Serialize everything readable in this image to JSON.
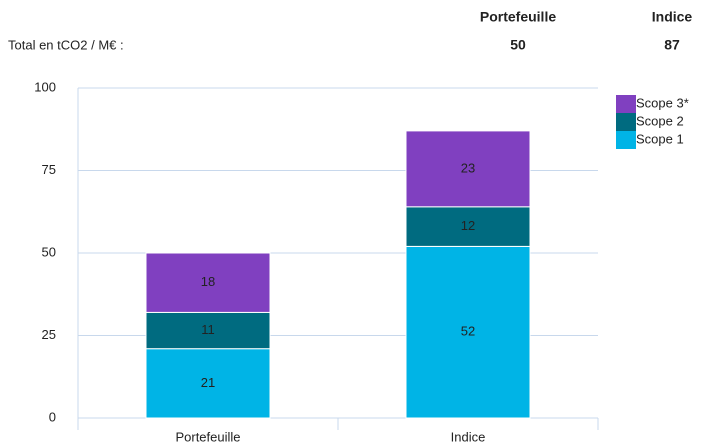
{
  "chart_data": {
    "type": "stacked_bar",
    "totals_label": "Total en tCO2 / M€ :",
    "totals": [
      {
        "name": "Portefeuille",
        "value": 50
      },
      {
        "name": "Indice",
        "value": 87
      }
    ],
    "categories": [
      "Portefeuille",
      "Indice"
    ],
    "series": [
      {
        "name": "Scope 1",
        "color": "#00b4e6",
        "values": [
          21,
          52
        ]
      },
      {
        "name": "Scope 2",
        "color": "#006b80",
        "values": [
          11,
          12
        ]
      },
      {
        "name": "Scope 3*",
        "color": "#8040c0",
        "values": [
          18,
          23
        ]
      }
    ],
    "ylim": [
      0,
      100
    ],
    "yticks": [
      0,
      25,
      50,
      75,
      100
    ],
    "grid": true,
    "legend": "upper right"
  }
}
